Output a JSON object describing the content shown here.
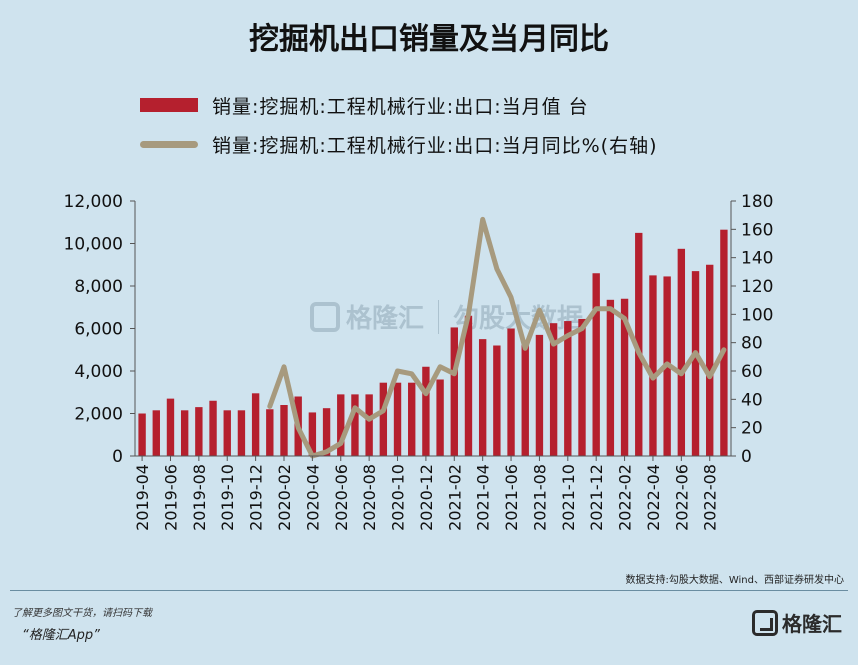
{
  "title": "挖掘机出口销量及当月同比",
  "legend": {
    "bar_label": "销量:挖掘机:工程机械行业:出口:当月值 台",
    "line_label": "销量:挖掘机:工程机械行业:出口:当月同比%(右轴)"
  },
  "watermark": {
    "brand": "格隆汇",
    "partner": "勾股大数据"
  },
  "source": "数据支持:勾股大数据、Wind、西部证券研发中心",
  "footer": {
    "note": "了解更多图文干货，请扫码下载",
    "app": "“格隆汇App”",
    "brand": "格隆汇"
  },
  "colors": {
    "bar": "#b5202e",
    "line": "#a79a7e",
    "background": "#cfe3ee"
  },
  "chart_data": {
    "type": "bar",
    "title": "挖掘机出口销量及当月同比",
    "categories": [
      "2019-04",
      "2019-05",
      "2019-06",
      "2019-07",
      "2019-08",
      "2019-09",
      "2019-10",
      "2019-11",
      "2019-12",
      "2020-01",
      "2020-02",
      "2020-03",
      "2020-04",
      "2020-05",
      "2020-06",
      "2020-07",
      "2020-08",
      "2020-09",
      "2020-10",
      "2020-11",
      "2020-12",
      "2021-01",
      "2021-02",
      "2021-03",
      "2021-04",
      "2021-05",
      "2021-06",
      "2021-07",
      "2021-08",
      "2021-09",
      "2021-10",
      "2021-11",
      "2021-12",
      "2022-01",
      "2022-02",
      "2022-03",
      "2022-04",
      "2022-05",
      "2022-06",
      "2022-07",
      "2022-08",
      "2022-09"
    ],
    "tick_labels": [
      "2019-04",
      "2019-06",
      "2019-08",
      "2019-10",
      "2019-12",
      "2020-02",
      "2020-04",
      "2020-06",
      "2020-08",
      "2020-10",
      "2020-12",
      "2021-02",
      "2021-04",
      "2021-06",
      "2021-08",
      "2021-10",
      "2021-12",
      "2022-02",
      "2022-04",
      "2022-06",
      "2022-08"
    ],
    "series": [
      {
        "name": "销量:挖掘机:工程机械行业:出口:当月值 台",
        "type": "bar",
        "axis": "left",
        "values": [
          2000,
          2150,
          2700,
          2150,
          2300,
          2600,
          2150,
          2150,
          2950,
          2200,
          2400,
          2800,
          2050,
          2250,
          2900,
          2900,
          2900,
          3450,
          3450,
          3450,
          4200,
          3600,
          6050,
          6600,
          5500,
          5200,
          6000,
          5350,
          5700,
          6250,
          6350,
          6450,
          8600,
          7350,
          7400,
          10500,
          8500,
          8450,
          9750,
          8700,
          9000,
          10650
        ]
      },
      {
        "name": "销量:挖掘机:工程机械行业:出口:当月同比%(右轴)",
        "type": "line",
        "axis": "right",
        "values": [
          null,
          null,
          null,
          null,
          null,
          null,
          null,
          null,
          null,
          35,
          63,
          20,
          0,
          3,
          9,
          34,
          26,
          32,
          60,
          58,
          44,
          63,
          58,
          100,
          167,
          132,
          112,
          76,
          103,
          79,
          85,
          90,
          104,
          104,
          97,
          73,
          55,
          65,
          58,
          73,
          56,
          75
        ]
      }
    ],
    "y_left": {
      "ticks": [
        "0",
        "2,000",
        "4,000",
        "6,000",
        "8,000",
        "10,000",
        "12,000"
      ],
      "ylim": [
        0,
        12000
      ]
    },
    "y_right": {
      "ticks": [
        "0",
        "20",
        "40",
        "60",
        "80",
        "100",
        "120",
        "140",
        "160",
        "180"
      ],
      "ylim": [
        0,
        180
      ]
    },
    "grid": false,
    "legend_position": "top"
  }
}
